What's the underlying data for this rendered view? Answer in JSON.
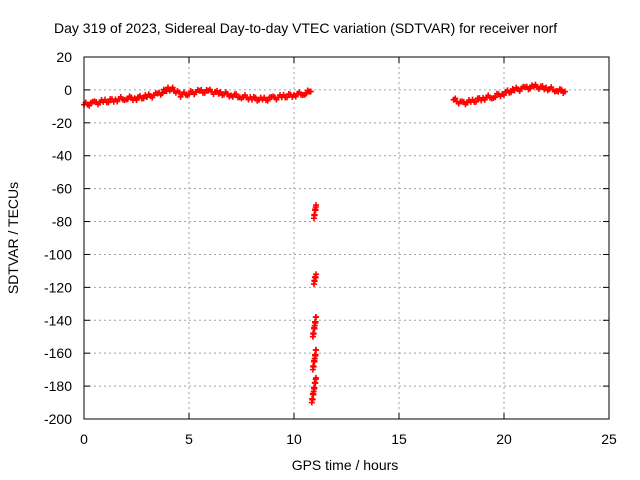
{
  "chart_data": {
    "type": "scatter",
    "title": "Day 319 of 2023, Sidereal Day-to-day VTEC variation (SDTVAR) for receiver norf",
    "xlabel": "GPS time / hours",
    "ylabel": "SDTVAR / TECUs",
    "xlim": [
      0,
      25
    ],
    "ylim": [
      -200,
      20
    ],
    "xticks": [
      0,
      5,
      10,
      15,
      20,
      25
    ],
    "yticks": [
      20,
      0,
      -20,
      -40,
      -60,
      -80,
      -100,
      -120,
      -140,
      -160,
      -180,
      -200
    ],
    "grid": true,
    "marker": "+",
    "series": [
      {
        "name": "SDTVAR",
        "color": "#ff0000",
        "segments": [
          {
            "x": [
              0.0,
              0.5,
              1.0,
              1.5,
              2.0,
              2.5,
              3.0,
              3.5,
              3.8,
              4.0,
              4.3,
              4.6,
              5.0,
              5.5,
              6.0,
              6.5,
              7.0,
              7.5,
              8.0,
              8.5,
              9.0,
              9.5,
              10.0,
              10.5,
              10.8
            ],
            "y": [
              -9,
              -8,
              -7,
              -6,
              -5,
              -5,
              -4,
              -3,
              -1,
              1,
              0,
              -3,
              -2,
              -1,
              -1,
              -2,
              -3,
              -4,
              -5,
              -6,
              -5,
              -4,
              -3,
              -2,
              -1
            ]
          },
          {
            "x": [
              10.95,
              11.0,
              11.05
            ],
            "y": [
              -78,
              -74,
              -70
            ]
          },
          {
            "x": [
              10.95,
              11.0,
              11.05
            ],
            "y": [
              -118,
              -115,
              -112
            ]
          },
          {
            "x": [
              10.9,
              10.95,
              11.0,
              11.05
            ],
            "y": [
              -150,
              -146,
              -142,
              -138
            ]
          },
          {
            "x": [
              10.9,
              10.95,
              11.0,
              11.05
            ],
            "y": [
              -170,
              -166,
              -162,
              -158
            ]
          },
          {
            "x": [
              10.85,
              10.9,
              10.95,
              11.0,
              11.05
            ],
            "y": [
              -190,
              -186,
              -182,
              -178,
              -175
            ]
          },
          {
            "x": [
              17.6,
              18.0,
              18.5,
              19.0,
              19.5,
              20.0,
              20.5,
              21.0,
              21.5,
              22.0,
              22.5,
              22.9
            ],
            "y": [
              -6,
              -8,
              -7,
              -5,
              -4,
              -2,
              0,
              1,
              2,
              1,
              0,
              -1
            ]
          }
        ]
      }
    ]
  }
}
